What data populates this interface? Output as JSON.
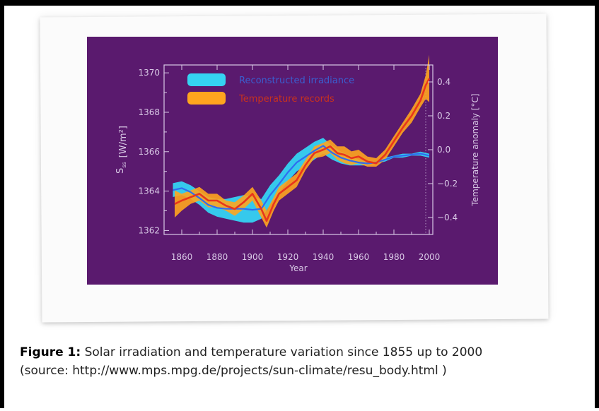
{
  "caption": {
    "figure_label": "Figure 1:",
    "text": " Solar irradiation and temperature variation since 1855 up to 2000",
    "source": "(source: http://www.mps.mpg.de/projects/sun-climate/resu_body.html )"
  },
  "colors": {
    "panel": "#5a1a6e",
    "axis": "#d9c9e6",
    "irradiance_band": "#35d3f2",
    "irradiance_line": "#2f6df0",
    "temp_band": "#ffa51e",
    "temp_line": "#e8361c"
  },
  "chart_data": {
    "type": "line",
    "xlabel": "Year",
    "ylabel_left": "S_ss [W/m²]",
    "ylabel_left_main": "S",
    "ylabel_left_sub": "ss",
    "ylabel_left_unit": "[W/m²]",
    "ylabel_right": "Temperature anomaly [°C]",
    "xlim": [
      1850,
      2002
    ],
    "ylim_left": [
      1361.8,
      1370.4
    ],
    "ylim_right": [
      -0.5,
      0.5
    ],
    "x_ticks": [
      1860,
      1880,
      1900,
      1920,
      1940,
      1960,
      1980,
      2000
    ],
    "y_ticks_left": [
      1362,
      1364,
      1366,
      1368,
      1370
    ],
    "y_ticks_right": [
      -0.4,
      -0.2,
      0.0,
      0.2,
      0.4
    ],
    "y_tick_labels_right": [
      "−0.4",
      "−0.2",
      "0.0",
      "0.2",
      "0.4"
    ],
    "legend": {
      "placement": "top-left",
      "entries": [
        "Reconstructed irradiance",
        "Temperature records"
      ]
    },
    "series": [
      {
        "name": "Reconstructed irradiance",
        "axis": "left",
        "x": [
          1855,
          1860,
          1865,
          1870,
          1875,
          1880,
          1885,
          1890,
          1895,
          1900,
          1905,
          1910,
          1915,
          1920,
          1925,
          1930,
          1935,
          1940,
          1945,
          1950,
          1955,
          1960,
          1965,
          1970,
          1975,
          1980,
          1985,
          1990,
          1995,
          2000
        ],
        "upper": [
          1364.4,
          1364.5,
          1364.3,
          1364.0,
          1363.7,
          1363.6,
          1363.6,
          1363.7,
          1363.8,
          1363.7,
          1363.6,
          1364.3,
          1364.8,
          1365.4,
          1365.9,
          1366.2,
          1366.5,
          1366.7,
          1366.3,
          1366.0,
          1365.8,
          1365.6,
          1365.5,
          1365.5,
          1365.7,
          1365.8,
          1365.9,
          1365.9,
          1366.0,
          1365.9
        ],
        "lower": [
          1363.7,
          1363.8,
          1363.6,
          1363.3,
          1362.9,
          1362.7,
          1362.6,
          1362.5,
          1362.4,
          1362.4,
          1362.6,
          1363.3,
          1363.9,
          1364.5,
          1365.0,
          1365.3,
          1365.6,
          1365.9,
          1365.6,
          1365.4,
          1365.3,
          1365.3,
          1365.3,
          1365.4,
          1365.5,
          1365.7,
          1365.7,
          1365.8,
          1365.8,
          1365.7
        ],
        "values": [
          1364.05,
          1364.15,
          1363.95,
          1363.65,
          1363.3,
          1363.15,
          1363.1,
          1363.1,
          1363.1,
          1363.05,
          1363.1,
          1363.8,
          1364.35,
          1364.95,
          1365.45,
          1365.75,
          1366.05,
          1366.3,
          1365.95,
          1365.7,
          1365.55,
          1365.45,
          1365.4,
          1365.45,
          1365.6,
          1365.75,
          1365.8,
          1365.85,
          1365.9,
          1365.8
        ]
      },
      {
        "name": "Temperature records",
        "axis": "right",
        "x": [
          1856,
          1860,
          1865,
          1870,
          1875,
          1880,
          1885,
          1890,
          1895,
          1900,
          1905,
          1908,
          1912,
          1915,
          1920,
          1925,
          1930,
          1935,
          1940,
          1944,
          1948,
          1952,
          1956,
          1960,
          1965,
          1970,
          1975,
          1980,
          1985,
          1990,
          1995,
          1998,
          2000
        ],
        "upper": [
          -0.24,
          -0.26,
          -0.24,
          -0.22,
          -0.26,
          -0.26,
          -0.3,
          -0.31,
          -0.27,
          -0.22,
          -0.3,
          -0.36,
          -0.28,
          -0.22,
          -0.18,
          -0.14,
          -0.06,
          0.02,
          0.04,
          0.06,
          0.02,
          0.02,
          -0.01,
          0.0,
          -0.04,
          -0.05,
          0.0,
          0.08,
          0.16,
          0.24,
          0.33,
          0.44,
          0.56
        ],
        "lower": [
          -0.4,
          -0.36,
          -0.32,
          -0.3,
          -0.34,
          -0.34,
          -0.36,
          -0.39,
          -0.35,
          -0.3,
          -0.4,
          -0.46,
          -0.36,
          -0.3,
          -0.26,
          -0.22,
          -0.12,
          -0.05,
          -0.04,
          -0.02,
          -0.06,
          -0.08,
          -0.09,
          -0.08,
          -0.1,
          -0.1,
          -0.06,
          0.02,
          0.1,
          0.16,
          0.25,
          0.3,
          0.28
        ],
        "values": [
          -0.32,
          -0.3,
          -0.28,
          -0.26,
          -0.3,
          -0.3,
          -0.33,
          -0.35,
          -0.31,
          -0.26,
          -0.35,
          -0.42,
          -0.32,
          -0.26,
          -0.22,
          -0.18,
          -0.09,
          -0.02,
          0.0,
          0.02,
          -0.02,
          -0.03,
          -0.05,
          -0.04,
          -0.07,
          -0.08,
          -0.03,
          0.05,
          0.13,
          0.2,
          0.29,
          0.38,
          0.42
        ]
      }
    ]
  }
}
